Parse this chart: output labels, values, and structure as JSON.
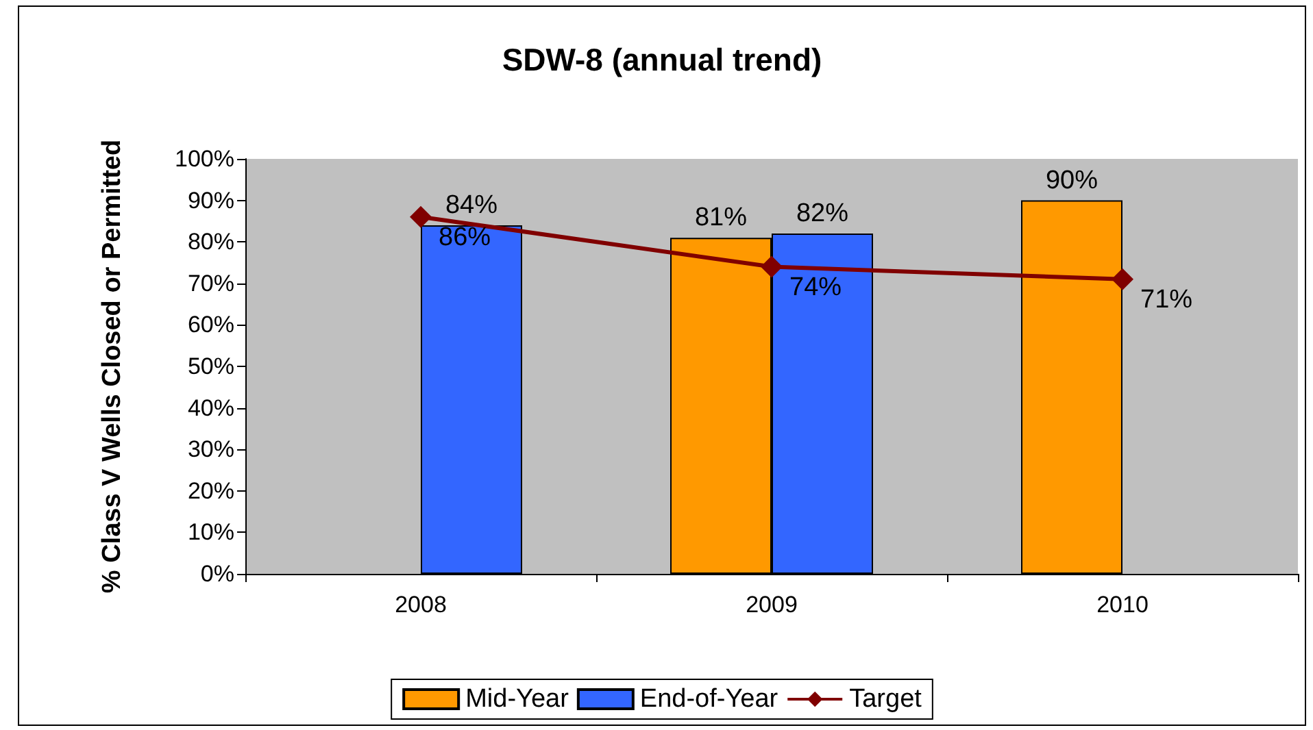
{
  "chart_data": {
    "type": "bar",
    "title": "SDW-8 (annual trend)",
    "ylabel": "% Class V Wells Closed or Permitted",
    "categories": [
      "2008",
      "2009",
      "2010"
    ],
    "series": [
      {
        "name": "Mid-Year",
        "color": "#ff9900",
        "values": [
          null,
          81,
          90
        ],
        "value_labels": [
          null,
          "81%",
          "90%"
        ]
      },
      {
        "name": "End-of-Year",
        "color": "#3366ff",
        "values": [
          84,
          82,
          null
        ],
        "value_labels": [
          "84%",
          "82%",
          null
        ]
      },
      {
        "name": "Target",
        "type": "line",
        "color": "#800000",
        "marker": "diamond",
        "values": [
          86,
          74,
          71
        ],
        "value_labels": [
          "86%",
          "74%",
          "71%"
        ]
      }
    ],
    "ylim": [
      0,
      100
    ],
    "yticks": [
      {
        "value": 0,
        "label": "0%"
      },
      {
        "value": 10,
        "label": "10%"
      },
      {
        "value": 20,
        "label": "20%"
      },
      {
        "value": 30,
        "label": "30%"
      },
      {
        "value": 40,
        "label": "40%"
      },
      {
        "value": 50,
        "label": "50%"
      },
      {
        "value": 60,
        "label": "60%"
      },
      {
        "value": 70,
        "label": "70%"
      },
      {
        "value": 80,
        "label": "80%"
      },
      {
        "value": 90,
        "label": "90%"
      },
      {
        "value": 100,
        "label": "100%"
      }
    ],
    "grid": false,
    "legend": "bottom"
  }
}
